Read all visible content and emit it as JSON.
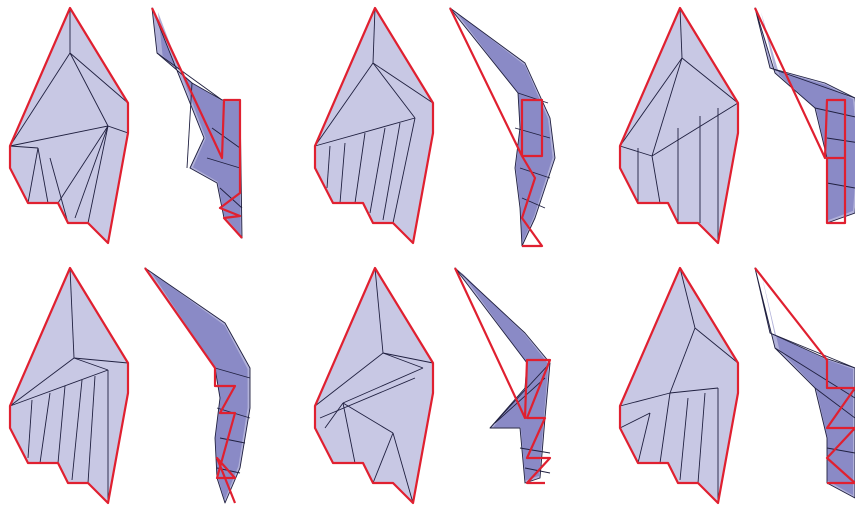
{
  "figure": {
    "rows": 2,
    "columns": 3,
    "colors": {
      "background": "#ffffff",
      "flat_fill": "#c8c8e4",
      "folded_fill": "#6464b4",
      "crease_line": "#202040",
      "boundary_line": "#e02030"
    },
    "caption": ""
  }
}
